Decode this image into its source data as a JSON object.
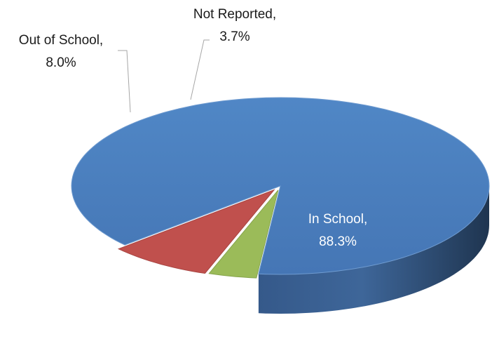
{
  "chart_data": {
    "type": "pie",
    "style": "3d-exploded",
    "title": "",
    "slices": [
      {
        "label": "In School,",
        "value": 88.3,
        "value_label": "88.3%",
        "color": "#4f81bd"
      },
      {
        "label": "Out of School,",
        "value": 8.0,
        "value_label": "8.0%",
        "color": "#c0504d"
      },
      {
        "label": "Not Reported,",
        "value": 3.7,
        "value_label": "3.7%",
        "color": "#9bbb59"
      }
    ],
    "legend": "none",
    "data_labels": "category-and-percentage"
  }
}
